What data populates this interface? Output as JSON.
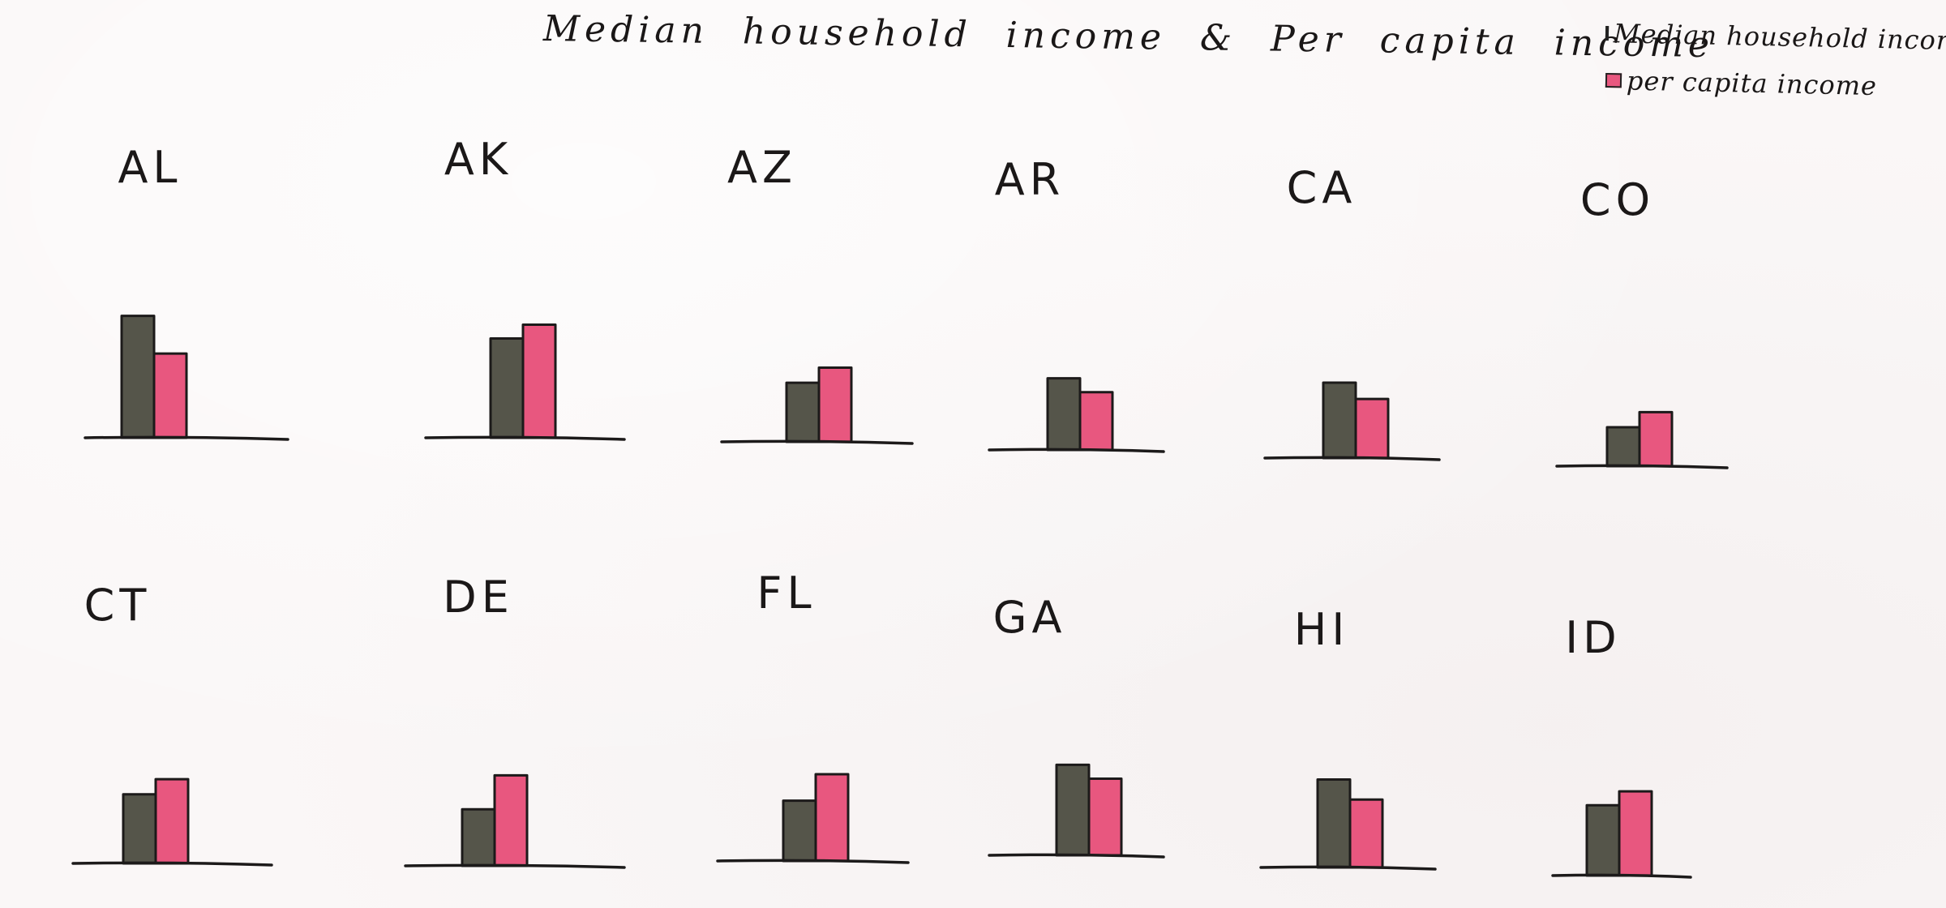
{
  "chart_data": {
    "type": "bar",
    "title": "Median household income & Per capita income",
    "series": [
      {
        "name": "Median household income",
        "color": "#55554a"
      },
      {
        "name": "per capita income",
        "color": "#e8577f"
      }
    ],
    "panels": [
      {
        "category": "AL",
        "values": [
          97,
          67
        ]
      },
      {
        "category": "AK",
        "values": [
          79,
          90
        ]
      },
      {
        "category": "AZ",
        "values": [
          47,
          59
        ]
      },
      {
        "category": "AR",
        "values": [
          57,
          46
        ]
      },
      {
        "category": "CA",
        "values": [
          60,
          47
        ]
      },
      {
        "category": "CO",
        "values": [
          31,
          43
        ]
      },
      {
        "category": "CT",
        "values": [
          55,
          67
        ]
      },
      {
        "category": "DE",
        "values": [
          45,
          72
        ]
      },
      {
        "category": "FL",
        "values": [
          48,
          69
        ]
      },
      {
        "category": "GA",
        "values": [
          72,
          61
        ]
      },
      {
        "category": "HI",
        "values": [
          70,
          54
        ]
      },
      {
        "category": "ID",
        "values": [
          56,
          67
        ]
      }
    ],
    "xlabel": "",
    "ylabel": "",
    "grid": false,
    "legend_position": "top-right"
  }
}
